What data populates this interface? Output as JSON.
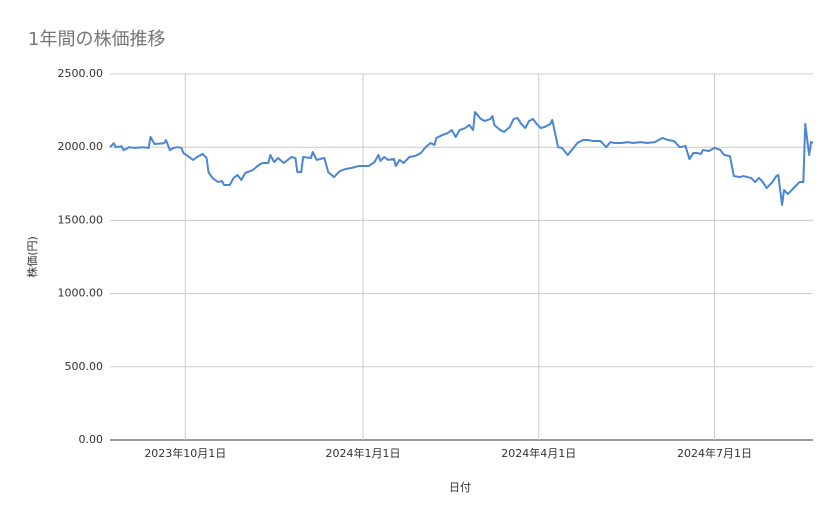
{
  "chart_data": {
    "type": "line",
    "title": "1年間の株価推移",
    "x_label": "日付",
    "y_label": "株価(円)",
    "color": "#4a86d4",
    "grid": true,
    "x": [
      "2023-08-23",
      "2023-08-25",
      "2023-08-26",
      "2023-08-29",
      "2023-08-30",
      "2023-09-02",
      "2023-09-05",
      "2023-09-09",
      "2023-09-12",
      "2023-09-13",
      "2023-09-15",
      "2023-09-20",
      "2023-09-21",
      "2023-09-23",
      "2023-09-25",
      "2023-09-27",
      "2023-09-29",
      "2023-09-30",
      "2023-10-03",
      "2023-10-05",
      "2023-10-07",
      "2023-10-10",
      "2023-10-12",
      "2023-10-13",
      "2023-10-15",
      "2023-10-18",
      "2023-10-20",
      "2023-10-21",
      "2023-10-24",
      "2023-10-26",
      "2023-10-28",
      "2023-10-30",
      "2023-11-01",
      "2023-11-05",
      "2023-11-08",
      "2023-11-10",
      "2023-11-13",
      "2023-11-14",
      "2023-11-16",
      "2023-11-18",
      "2023-11-21",
      "2023-11-23",
      "2023-11-25",
      "2023-11-27",
      "2023-11-28",
      "2023-11-30",
      "2023-12-01",
      "2023-12-05",
      "2023-12-06",
      "2023-12-08",
      "2023-12-10",
      "2023-12-12",
      "2023-12-14",
      "2023-12-17",
      "2023-12-20",
      "2023-12-23",
      "2023-12-26",
      "2023-12-30",
      "2024-01-04",
      "2024-01-07",
      "2024-01-09",
      "2024-01-10",
      "2024-01-12",
      "2024-01-14",
      "2024-01-17",
      "2024-01-18",
      "2024-01-20",
      "2024-01-22",
      "2024-01-25",
      "2024-01-28",
      "2024-01-31",
      "2024-02-02",
      "2024-02-05",
      "2024-02-07",
      "2024-02-08",
      "2024-02-11",
      "2024-02-14",
      "2024-02-16",
      "2024-02-18",
      "2024-02-20",
      "2024-02-23",
      "2024-02-25",
      "2024-02-27",
      "2024-02-28",
      "2024-03-02",
      "2024-03-04",
      "2024-03-07",
      "2024-03-08",
      "2024-03-09",
      "2024-03-12",
      "2024-03-14",
      "2024-03-17",
      "2024-03-19",
      "2024-03-21",
      "2024-03-23",
      "2024-03-25",
      "2024-03-27",
      "2024-03-29",
      "2024-03-31",
      "2024-04-02",
      "2024-04-04",
      "2024-04-07",
      "2024-04-08",
      "2024-04-10",
      "2024-04-11",
      "2024-04-13",
      "2024-04-16",
      "2024-04-19",
      "2024-04-21",
      "2024-04-24",
      "2024-04-27",
      "2024-04-29",
      "2024-05-03",
      "2024-05-06",
      "2024-05-08",
      "2024-05-10",
      "2024-05-14",
      "2024-05-17",
      "2024-05-20",
      "2024-05-24",
      "2024-05-27",
      "2024-05-31",
      "2024-06-04",
      "2024-06-07",
      "2024-06-10",
      "2024-06-13",
      "2024-06-16",
      "2024-06-18",
      "2024-06-20",
      "2024-06-22",
      "2024-06-24",
      "2024-06-25",
      "2024-06-28",
      "2024-07-01",
      "2024-07-04",
      "2024-07-06",
      "2024-07-09",
      "2024-07-11",
      "2024-07-14",
      "2024-07-16",
      "2024-07-18",
      "2024-07-20",
      "2024-07-22",
      "2024-07-24",
      "2024-07-26",
      "2024-07-28",
      "2024-07-31",
      "2024-08-02",
      "2024-08-03",
      "2024-08-05",
      "2024-08-06",
      "2024-08-08",
      "2024-08-10",
      "2024-08-12",
      "2024-08-14",
      "2024-08-16",
      "2024-08-17",
      "2024-08-19",
      "2024-08-20",
      "2024-08-21"
    ],
    "values": [
      2000,
      2027,
      2000,
      2007,
      1980,
      2000,
      1995,
      2000,
      1995,
      2070,
      2022,
      2027,
      2049,
      1980,
      1995,
      2000,
      1995,
      1960,
      1933,
      1913,
      1933,
      1954,
      1926,
      1830,
      1790,
      1762,
      1769,
      1742,
      1742,
      1790,
      1810,
      1776,
      1824,
      1844,
      1878,
      1892,
      1892,
      1947,
      1899,
      1926,
      1892,
      1913,
      1933,
      1926,
      1830,
      1830,
      1933,
      1926,
      1967,
      1913,
      1920,
      1926,
      1830,
      1796,
      1837,
      1851,
      1858,
      1872,
      1872,
      1899,
      1947,
      1906,
      1933,
      1913,
      1920,
      1872,
      1913,
      1892,
      1933,
      1940,
      1960,
      1995,
      2029,
      2015,
      2063,
      2083,
      2097,
      2117,
      2070,
      2117,
      2131,
      2152,
      2117,
      2240,
      2193,
      2179,
      2193,
      2213,
      2152,
      2117,
      2104,
      2138,
      2193,
      2199,
      2158,
      2131,
      2179,
      2193,
      2158,
      2131,
      2138,
      2158,
      2186,
      2063,
      2000,
      1995,
      1947,
      1995,
      2029,
      2049,
      2049,
      2042,
      2042,
      2000,
      2035,
      2029,
      2029,
      2035,
      2029,
      2035,
      2029,
      2035,
      2063,
      2049,
      2042,
      2000,
      2008,
      1919,
      1960,
      1960,
      1954,
      1981,
      1974,
      1995,
      1981,
      1947,
      1940,
      1803,
      1796,
      1803,
      1796,
      1790,
      1762,
      1790,
      1762,
      1721,
      1762,
      1803,
      1810,
      1605,
      1708,
      1680,
      1708,
      1735,
      1762,
      1762,
      2159,
      1947,
      2035,
      2029
    ],
    "xlim": [
      "2023-08-23",
      "2024-08-21"
    ],
    "xticks": [
      {
        "value": "2023-10-01",
        "label": "2023年10月1日"
      },
      {
        "value": "2024-01-01",
        "label": "2024年1月1日"
      },
      {
        "value": "2024-04-01",
        "label": "2024年4月1日"
      },
      {
        "value": "2024-07-01",
        "label": "2024年7月1日"
      }
    ],
    "ylim": [
      0,
      2500
    ],
    "yticks": [
      {
        "value": 0,
        "label": "0.00"
      },
      {
        "value": 500,
        "label": "500.00"
      },
      {
        "value": 1000,
        "label": "1000.00"
      },
      {
        "value": 1500,
        "label": "1500.00"
      },
      {
        "value": 2000,
        "label": "2000.00"
      },
      {
        "value": 2500,
        "label": "2500.00"
      }
    ]
  }
}
